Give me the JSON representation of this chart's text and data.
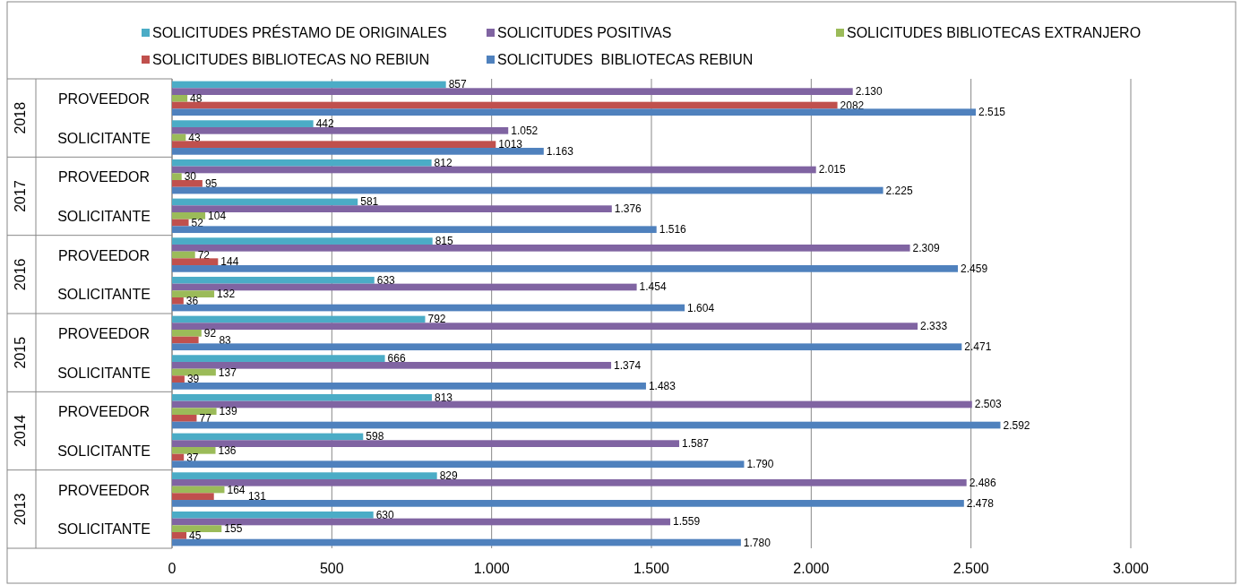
{
  "chart_data": {
    "type": "bar",
    "orientation": "horizontal",
    "categories": [
      "PROVEEDOR",
      "SOLICITANTE",
      "PROVEEDOR",
      "SOLICITANTE",
      "PROVEEDOR",
      "SOLICITANTE",
      "PROVEEDOR",
      "SOLICITANTE",
      "PROVEEDOR",
      "SOLICITANTE",
      "PROVEEDOR",
      "SOLICITANTE"
    ],
    "annotations": [
      "2018",
      "2017",
      "2016",
      "2015",
      "2014",
      "2013"
    ],
    "series": [
      {
        "name": "SOLICITUDES PRÉSTAMO DE ORIGINALES",
        "color": "#4bacc6",
        "values": [
          857,
          442,
          812,
          581,
          815,
          633,
          792,
          666,
          813,
          598,
          829,
          630
        ],
        "value_labels": [
          "857",
          "442",
          "812",
          "581",
          "815",
          "633",
          "792",
          "666",
          "813",
          "598",
          "829",
          "630"
        ]
      },
      {
        "name": "SOLICITUDES POSITIVAS",
        "color": "#8064a2",
        "values": [
          2130,
          1052,
          2015,
          1376,
          2309,
          1454,
          2333,
          1374,
          2503,
          1587,
          2486,
          1559
        ],
        "value_labels": [
          "2.130",
          "1.052",
          "2.015",
          "1.376",
          "2.309",
          "1.454",
          "2.333",
          "1.374",
          "2.503",
          "1.587",
          "2.486",
          "1.559"
        ]
      },
      {
        "name": "SOLICITUDES BIBLIOTECAS EXTRANJERO",
        "color": "#9bbb59",
        "values": [
          48,
          43,
          30,
          104,
          72,
          132,
          92,
          137,
          139,
          136,
          164,
          155
        ],
        "value_labels": [
          "48",
          "43",
          "30",
          "104",
          "72",
          "132",
          "92",
          "137",
          "139",
          "136",
          "164",
          "155"
        ]
      },
      {
        "name": "SOLICITUDES BIBLIOTECAS NO REBIUN",
        "color": "#c0504d",
        "values": [
          2082,
          1013,
          95,
          52,
          144,
          36,
          83,
          39,
          77,
          37,
          131,
          45
        ],
        "value_labels": [
          "2082",
          "1013",
          "95",
          "52",
          "144",
          "36",
          "83",
          "39",
          "77",
          "37",
          "131",
          "45"
        ]
      },
      {
        "name": "SOLICITUDES  BIBLIOTECAS REBIUN",
        "color": "#4f81bd",
        "values": [
          2515,
          1163,
          2225,
          1516,
          2459,
          1604,
          2471,
          1483,
          2592,
          1790,
          2478,
          1780
        ],
        "value_labels": [
          "2.515",
          "1.163",
          "2.225",
          "1.516",
          "2.459",
          "1.604",
          "2.471",
          "1.483",
          "2.592",
          "1.790",
          "2.478",
          "1.780"
        ]
      }
    ],
    "xlim": [
      0,
      3000
    ],
    "xticks": [
      0,
      500,
      {
        "value": 1000,
        "label": "1.000"
      },
      {
        "value": 1500,
        "label": "1.500"
      },
      {
        "value": 2000,
        "label": "2.000"
      },
      {
        "value": 2500,
        "label": "2.500"
      },
      {
        "value": 3000,
        "label": "3.000"
      }
    ],
    "grid": "x",
    "legend": "top"
  }
}
